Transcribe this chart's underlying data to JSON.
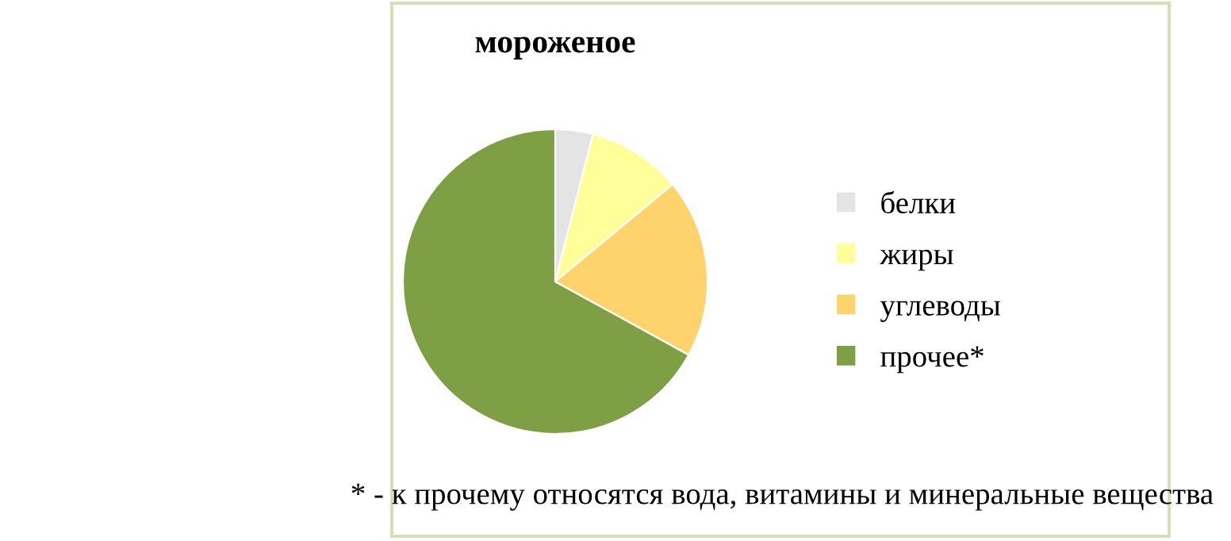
{
  "chart_data": {
    "type": "pie",
    "title": "мороженое",
    "categories": [
      "белки",
      "жиры",
      "углеводы",
      "прочее*"
    ],
    "values": [
      4,
      10,
      19,
      67
    ],
    "colors": [
      "#e4e4e4",
      "#ffff99",
      "#ffd36b",
      "#7f9f45"
    ],
    "legend": "right",
    "annotations": [
      "* - к прочему относятся вода, витамины и минеральные вещества"
    ]
  }
}
